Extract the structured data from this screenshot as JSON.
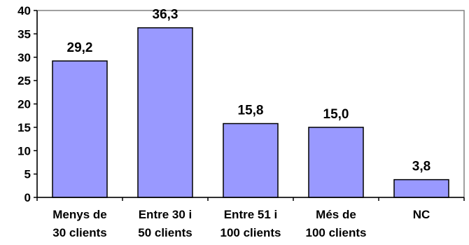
{
  "chart_data": {
    "type": "bar",
    "title": "",
    "xlabel": "",
    "ylabel": "",
    "categories": [
      [
        "Menys de",
        "30 clients"
      ],
      [
        "Entre 30 i",
        "50 clients"
      ],
      [
        "Entre 51 i",
        "100 clients"
      ],
      [
        "Més de",
        "100 clients"
      ],
      [
        "NC"
      ]
    ],
    "values": [
      29.2,
      36.3,
      15.8,
      15.0,
      3.8
    ],
    "data_labels": [
      "29,2",
      "36,3",
      "15,8",
      "15,0",
      "3,8"
    ],
    "yticks": [
      "0",
      "5",
      "10",
      "15",
      "20",
      "25",
      "30",
      "35",
      "40"
    ],
    "ylim": [
      0,
      40
    ],
    "grid": false,
    "legend": "none",
    "colors": {
      "bar_fill": "#9999ff",
      "bar_stroke": "#000000",
      "plot_background": "#ffffff",
      "plot_border": "#808080",
      "axis": "#000000"
    }
  }
}
